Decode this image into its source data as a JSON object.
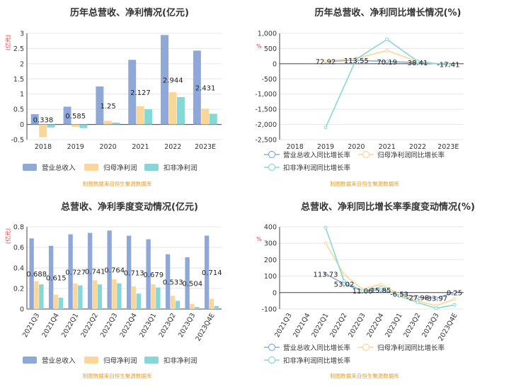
{
  "colors": {
    "revenue": "#8fa8da",
    "net_profit": "#fcd699",
    "deducted_profit": "#86d8d8",
    "axis": "#444444",
    "grid": "#e6e6e6",
    "source": "#e0a030",
    "unit": "#e03c3c"
  },
  "source_text": "制图数据来自恒生聚源数据库",
  "chart_data": [
    {
      "id": "annual_amount",
      "type": "bar",
      "title": "历年总营收、净利情况(亿元)",
      "unit": "(亿元)",
      "categories": [
        "2018",
        "2019",
        "2020",
        "2021",
        "2022",
        "2023E"
      ],
      "ylim": [
        -0.5,
        3
      ],
      "yticks": [
        -0.5,
        0,
        0.5,
        1,
        1.5,
        2,
        2.5,
        3
      ],
      "ytick_labels": [
        "-0.5",
        "0",
        "0.5",
        "1",
        "1.5",
        "2",
        "2.5",
        "3"
      ],
      "series": [
        {
          "name": "营业总收入",
          "values": [
            0.338,
            0.585,
            1.25,
            2.127,
            2.944,
            2.431
          ],
          "labels": [
            "0.338",
            "0.585",
            "1.25",
            "2.127",
            "2.944",
            "2.431"
          ]
        },
        {
          "name": "归母净利润",
          "values": [
            -0.42,
            -0.08,
            0.12,
            0.6,
            1.06,
            0.52
          ]
        },
        {
          "name": "扣非净利润",
          "values": [
            -0.1,
            -0.12,
            0.06,
            0.5,
            0.9,
            0.35
          ]
        }
      ]
    },
    {
      "id": "annual_growth",
      "type": "line",
      "title": "历年总营收、净利同比增长情况(%)",
      "unit": "%",
      "categories": [
        "2018",
        "2019",
        "2020",
        "2021",
        "2022",
        "2023E"
      ],
      "ylim": [
        -2500,
        1000
      ],
      "yticks": [
        -2500,
        -2000,
        -1500,
        -1000,
        -500,
        0,
        500,
        1000
      ],
      "ytick_labels": [
        "-2,500",
        "-2,000",
        "-1,500",
        "-1,000",
        "-500",
        "0",
        "500",
        "1,000"
      ],
      "series": [
        {
          "name": "营业总收入同比增长率",
          "values": [
            null,
            72.92,
            113.55,
            70.19,
            38.41,
            -17.41
          ],
          "labels": [
            "",
            "72.92",
            "113.55",
            "70.19",
            "38.41",
            "-17.41"
          ]
        },
        {
          "name": "归母净利润同比增长率",
          "values": [
            null,
            80,
            180,
            430,
            70,
            -50
          ]
        },
        {
          "name": "扣非净利润同比增长率",
          "values": [
            null,
            -2100,
            150,
            800,
            80,
            -50
          ]
        }
      ]
    },
    {
      "id": "quarterly_amount",
      "type": "bar",
      "title": "总营收、净利季度变动情况(亿元)",
      "unit": "(亿元)",
      "categories": [
        "2021Q3",
        "2021Q4",
        "2022Q1",
        "2022Q2",
        "2022Q3",
        "2022Q4",
        "2023Q1",
        "2023Q2",
        "2023Q3",
        "2023Q4E"
      ],
      "ylim": [
        0,
        0.8
      ],
      "yticks": [
        0,
        0.2,
        0.4,
        0.6,
        0.8
      ],
      "ytick_labels": [
        "0",
        "0.2",
        "0.4",
        "0.6",
        "0.8"
      ],
      "series": [
        {
          "name": "营业总收入",
          "values": [
            0.688,
            0.615,
            0.727,
            0.741,
            0.764,
            0.713,
            0.679,
            0.533,
            0.504,
            0.714
          ],
          "labels": [
            "0.688",
            "0.615",
            "0.727",
            "0.741",
            "0.764",
            "0.713",
            "0.679",
            "0.533",
            "0.504",
            "0.714"
          ]
        },
        {
          "name": "归母净利润",
          "values": [
            0.27,
            0.14,
            0.25,
            0.28,
            0.29,
            0.22,
            0.24,
            0.13,
            0.05,
            0.1
          ]
        },
        {
          "name": "扣非净利润",
          "values": [
            0.24,
            0.11,
            0.23,
            0.24,
            0.25,
            0.15,
            0.21,
            0.08,
            0.02,
            0.03
          ]
        }
      ]
    },
    {
      "id": "quarterly_growth",
      "type": "line",
      "title": "总营收、净利同比增长率季度变动情况(%)",
      "unit": "%",
      "categories": [
        "2021Q3",
        "2021Q4",
        "2022Q1",
        "2022Q2",
        "2022Q3",
        "2022Q4",
        "2023Q1",
        "2023Q2",
        "2023Q3",
        "2023Q4E"
      ],
      "ylim": [
        -100,
        400
      ],
      "yticks": [
        -100,
        0,
        100,
        200,
        300,
        400
      ],
      "ytick_labels": [
        "-100",
        "0",
        "100",
        "200",
        "300",
        "400"
      ],
      "series": [
        {
          "name": "营业总收入同比增长率",
          "values": [
            null,
            null,
            113.73,
            53.02,
            11.06,
            15.85,
            -6.53,
            -27.98,
            -33.97,
            0.25
          ],
          "labels": [
            "",
            "",
            "113.73",
            "53.02",
            "11.06",
            "15.85",
            "-6.53",
            "-27.98",
            "-33.97",
            "0.25"
          ]
        },
        {
          "name": "归母净利润同比增长率",
          "values": [
            null,
            null,
            300,
            110,
            20,
            50,
            -10,
            -50,
            -80,
            -40
          ]
        },
        {
          "name": "扣非净利润同比增长率",
          "values": [
            null,
            null,
            395,
            70,
            10,
            30,
            -20,
            -60,
            -95,
            -75
          ]
        }
      ]
    }
  ]
}
